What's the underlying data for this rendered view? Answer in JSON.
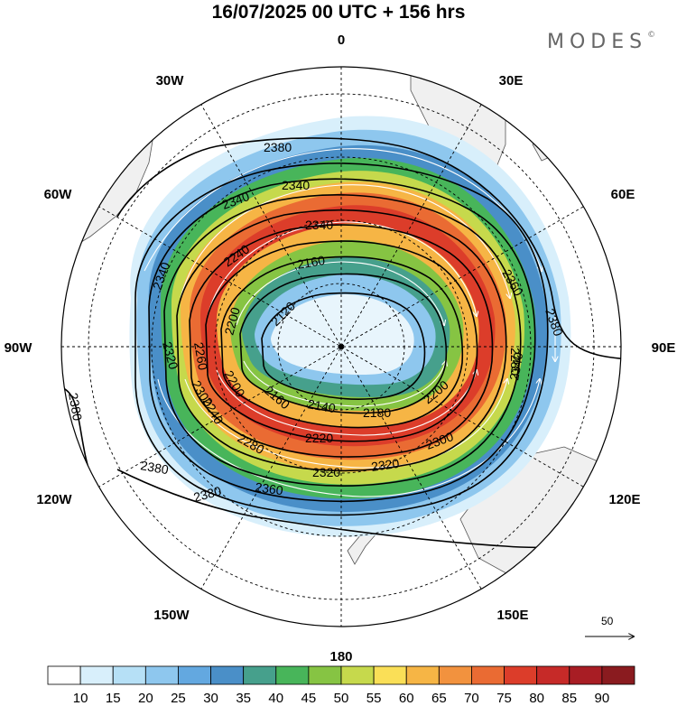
{
  "title": "16/07/2025  00 UTC  + 156 hrs",
  "brand": "MODES",
  "brand_mark": "©",
  "longitude_labels": [
    "0",
    "30E",
    "60E",
    "90E",
    "120E",
    "150E",
    "180",
    "150W",
    "120W",
    "90W",
    "60W",
    "30W"
  ],
  "contour_labels": [
    "2380",
    "2340",
    "2340",
    "2340",
    "2240",
    "2160",
    "2120",
    "2200",
    "2320",
    "2340",
    "2360",
    "2380",
    "2280",
    "2340",
    "2240",
    "2200",
    "2180",
    "2140",
    "2160",
    "2200",
    "2220",
    "2280",
    "2300",
    "2320",
    "2320",
    "2360",
    "2380",
    "2380",
    "2380",
    "2260",
    "2300"
  ],
  "reference_vector": {
    "value": "50"
  },
  "colorbar": {
    "ticks": [
      "10",
      "15",
      "20",
      "25",
      "30",
      "35",
      "40",
      "45",
      "50",
      "55",
      "60",
      "65",
      "70",
      "75",
      "80",
      "85",
      "90"
    ],
    "colors": [
      "#ffffff",
      "#d8effb",
      "#b6e0f6",
      "#8ec7ee",
      "#63a8e0",
      "#4a8fc8",
      "#46a08c",
      "#48b55a",
      "#86c443",
      "#c6d94c",
      "#fadf57",
      "#f6b545",
      "#f2923e",
      "#ea6b33",
      "#dc3d2a",
      "#c62a28",
      "#a81d24",
      "#8a1b1f"
    ]
  }
}
